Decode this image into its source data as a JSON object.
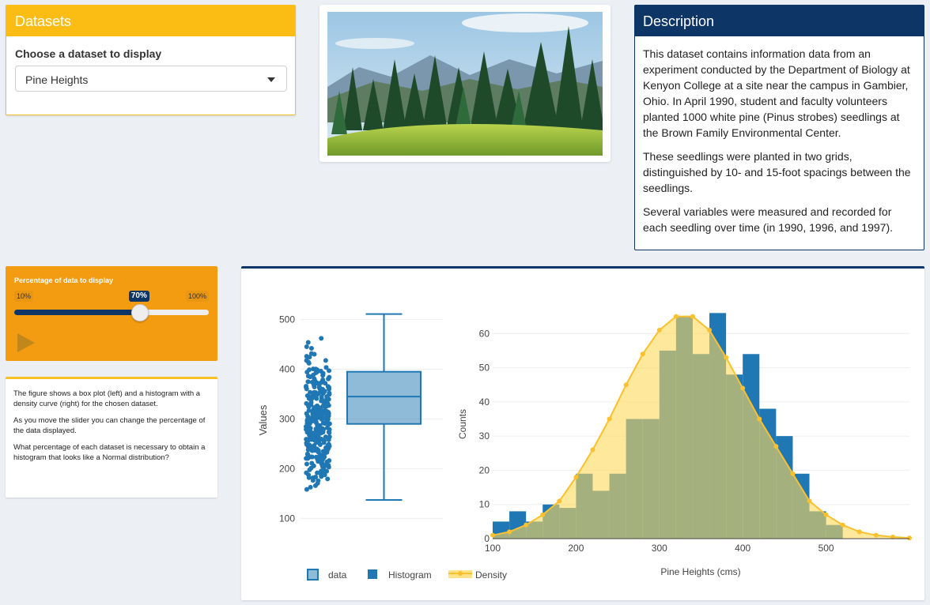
{
  "datasets": {
    "header": "Datasets",
    "choose_label": "Choose a dataset to display",
    "selected": "Pine Heights"
  },
  "photo": {
    "icon": "pine-forest-photo"
  },
  "description": {
    "header": "Description",
    "paragraphs": [
      "This dataset contains information data from an experiment conducted by the Department of Biology at Kenyon College at a site near the campus in Gambier, Ohio. In April 1990, student and faculty volunteers planted 1000 white pine (Pinus strobes) seedlings at the Brown Family Environmental Center.",
      "These seedlings were planted in two grids, distinguished by 10- and 15-foot spacings between the seedlings.",
      "Several variables were measured and recorded for each seedling over time (in 1990, 1996, and 1997)."
    ]
  },
  "slider": {
    "title": "Percentage of data to display",
    "min_label": "10%",
    "max_label": "100%",
    "value_label": "70%",
    "min": 10,
    "max": 100,
    "value": 70,
    "play_icon": "play-icon"
  },
  "info": {
    "paragraphs": [
      "The figure shows a box plot (left) and a histogram with a density curve (right) for the chosen dataset.",
      "As you move the slider you can change the percentage of the data displayed.",
      "What percentage of each dataset is necessary to obtain a histogram that looks like a Normal distribution?"
    ]
  },
  "colors": {
    "blue": "#1f77b4",
    "olive": "#8c9b5f",
    "gold": "#fbc02d",
    "yellow_fill": "#fde28a",
    "navy": "#0d3566",
    "orange": "#f39c12"
  },
  "chart_data": [
    {
      "type": "box",
      "ylabel": "Values",
      "ylim": [
        75,
        520
      ],
      "yticks": [
        100,
        200,
        300,
        400,
        500
      ],
      "box": {
        "min": 137,
        "q1": 290,
        "median": 345,
        "q3": 395,
        "max": 511
      },
      "legend_label": "data"
    },
    {
      "type": "histogram+density",
      "xlabel": "Pine Heights (cms)",
      "ylabel": "Counts",
      "xlim": [
        100,
        600
      ],
      "ylim": [
        0,
        67
      ],
      "xticks": [
        100,
        200,
        300,
        400,
        500
      ],
      "yticks": [
        0,
        10,
        20,
        30,
        40,
        50,
        60
      ],
      "bin_width": 20,
      "bin_starts": [
        100,
        120,
        140,
        160,
        180,
        200,
        220,
        240,
        260,
        280,
        300,
        320,
        340,
        360,
        380,
        400,
        420,
        440,
        460,
        480,
        500
      ],
      "histogram": [
        5,
        8,
        5,
        10,
        9,
        19,
        14,
        19,
        35,
        35,
        55,
        65,
        54,
        66,
        48,
        54,
        38,
        30,
        19,
        8,
        4
      ],
      "density_x": [
        100,
        120,
        140,
        160,
        180,
        200,
        220,
        240,
        260,
        280,
        300,
        320,
        340,
        360,
        380,
        400,
        420,
        440,
        460,
        480,
        500,
        520,
        540,
        560,
        580,
        600
      ],
      "density_y": [
        1,
        2,
        4,
        7,
        11,
        18,
        26,
        35,
        45,
        54,
        61,
        65,
        65,
        61,
        53,
        44,
        35,
        27,
        19,
        11,
        7,
        4,
        2,
        1,
        0.5,
        0.2
      ],
      "series": [
        {
          "name": "Histogram"
        },
        {
          "name": "Density"
        }
      ]
    }
  ]
}
